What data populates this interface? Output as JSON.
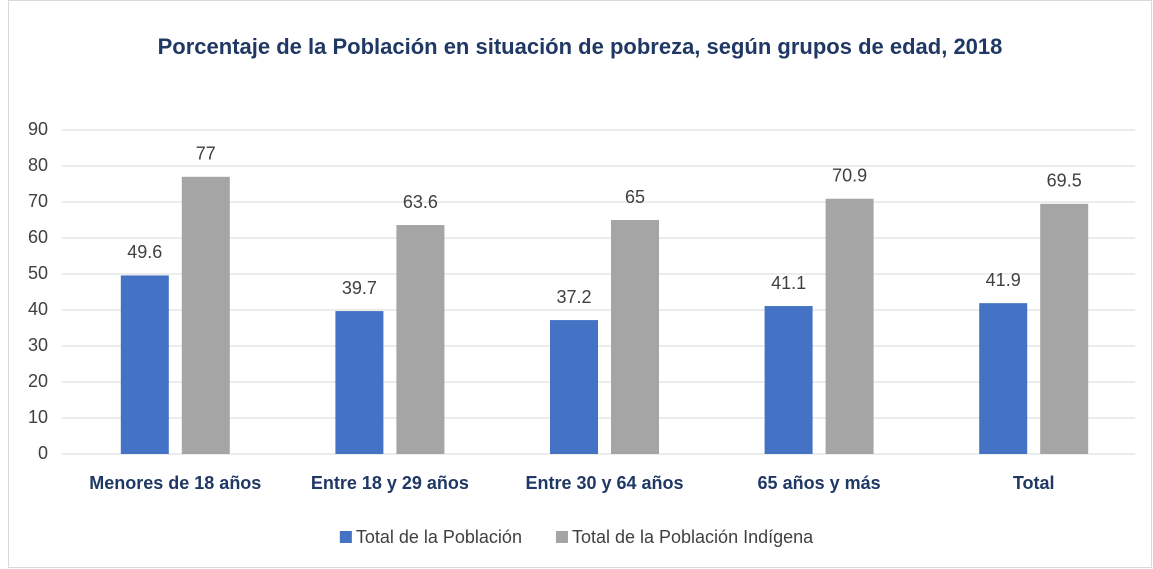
{
  "chart_data": {
    "type": "bar",
    "title": "Porcentaje de la Población en situación de pobreza, según grupos de edad, 2018",
    "categories": [
      "Menores de 18 años",
      "Entre 18 y 29 años",
      "Entre 30 y 64 años",
      "65 años y más",
      "Total"
    ],
    "series": [
      {
        "name": "Total de la Población",
        "color": "#4472c4",
        "values": [
          49.6,
          39.7,
          37.2,
          41.1,
          41.9
        ]
      },
      {
        "name": "Total de la Población Indígena",
        "color": "#a5a5a5",
        "values": [
          77,
          63.6,
          65,
          70.9,
          69.5
        ]
      }
    ],
    "ylim": [
      0,
      90
    ],
    "yticks": [
      0,
      10,
      20,
      30,
      40,
      50,
      60,
      70,
      80,
      90
    ],
    "grid": true,
    "legend": "bottom"
  }
}
